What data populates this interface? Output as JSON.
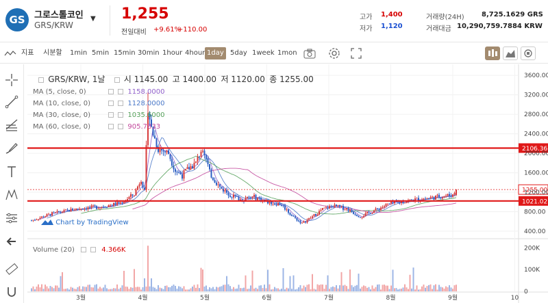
{
  "coin": {
    "logo_text": "GS",
    "name": "그로스톨코인",
    "pair": "GRS/KRW",
    "price": "1,255",
    "change_label": "전일대비",
    "change_pct": "+9.61%",
    "change_abs": "+110.00"
  },
  "stats": {
    "high_label": "고가",
    "high": "1,400",
    "low_label": "저가",
    "low": "1,120",
    "vol_label": "거래량(24H)",
    "vol": "8,725.1629 GRS",
    "amt_label": "거래대금",
    "amt": "10,290,759.7884 KRW"
  },
  "toolbar": {
    "indicator": "지표",
    "zoom": "시분할",
    "intervals": [
      "1min",
      "5min",
      "15min",
      "30min",
      "1hour",
      "4hour",
      "1day",
      "5day",
      "1week",
      "1mon"
    ],
    "active_interval": "1day"
  },
  "legend": {
    "title_prefix": "GRS/KRW, 1날",
    "ohlc": [
      "시 1145.00",
      "고 1400.00",
      "저 1120.00",
      "종 1255.00"
    ],
    "mas": [
      {
        "label": "MA (5, close, 0)",
        "value": "1158.0000",
        "color": "#8f5fc9"
      },
      {
        "label": "MA (10, close, 0)",
        "value": "1128.0000",
        "color": "#4a78c8"
      },
      {
        "label": "MA (30, close, 0)",
        "value": "1035.6000",
        "color": "#55a05a"
      },
      {
        "label": "MA (60, close, 0)",
        "value": "905.7833",
        "color": "#c2469b"
      }
    ],
    "volume_label": "Volume (20)",
    "volume_value": "4.366K",
    "watermark": "Chart by TradingView"
  },
  "chart_data": {
    "type": "candlestick",
    "x_tick_labels": [
      "3월",
      "4월",
      "5월",
      "6월",
      "7월",
      "8월",
      "9월",
      "10"
    ],
    "y_ticks": [
      400,
      800,
      1200,
      1600,
      2000,
      2400,
      2800,
      3200,
      3600
    ],
    "y_tick_labels": [
      "400.00",
      "800.00",
      "1200.00",
      "1600.00",
      "2000.00",
      "2400.00",
      "2800.00",
      "3200.00",
      "3600.00"
    ],
    "y_range": [
      260,
      3700
    ],
    "price_lines": [
      {
        "label": "2106.36",
        "value": 2106.36
      },
      {
        "label": "1021.02",
        "value": 1021.02
      }
    ],
    "last_price": {
      "label": "1255.00",
      "value": 1255
    },
    "volume_ticks": [
      {
        "label": "200K",
        "value": 200
      },
      {
        "label": "100K",
        "value": 100
      },
      {
        "label": "0",
        "value": 0
      }
    ],
    "volume_max": 220,
    "anchors": [
      [
        0,
        620
      ],
      [
        12,
        760
      ],
      [
        28,
        870
      ],
      [
        40,
        900
      ],
      [
        52,
        980
      ],
      [
        60,
        1160
      ],
      [
        64,
        1480
      ],
      [
        66,
        1200
      ],
      [
        68,
        2950
      ],
      [
        70,
        2500
      ],
      [
        74,
        2100
      ],
      [
        80,
        2000
      ],
      [
        84,
        1650
      ],
      [
        88,
        1550
      ],
      [
        92,
        1700
      ],
      [
        96,
        1800
      ],
      [
        100,
        2150
      ],
      [
        104,
        1600
      ],
      [
        110,
        1300
      ],
      [
        116,
        1150
      ],
      [
        122,
        1050
      ],
      [
        130,
        1100
      ],
      [
        138,
        1000
      ],
      [
        146,
        950
      ],
      [
        152,
        720
      ],
      [
        158,
        560
      ],
      [
        164,
        700
      ],
      [
        170,
        850
      ],
      [
        176,
        920
      ],
      [
        184,
        860
      ],
      [
        192,
        700
      ],
      [
        200,
        820
      ],
      [
        208,
        950
      ],
      [
        216,
        1000
      ],
      [
        224,
        1050
      ],
      [
        232,
        1080
      ],
      [
        240,
        1120
      ],
      [
        246,
        1145
      ],
      [
        248,
        1255
      ]
    ]
  }
}
